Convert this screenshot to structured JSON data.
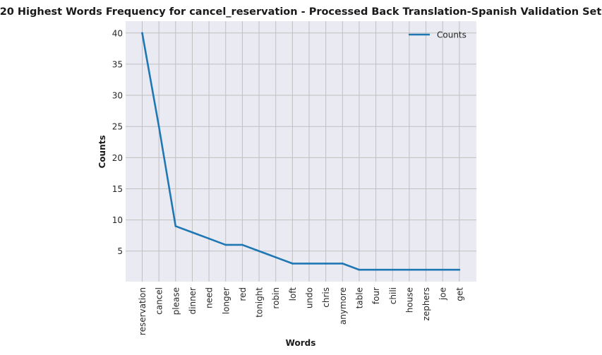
{
  "chart_data": {
    "type": "line",
    "title": "20 Highest Words Frequency for cancel_reservation - Processed Back Translation-Spanish Validation Set",
    "xlabel": "Words",
    "ylabel": "Counts",
    "categories": [
      "reservation",
      "cancel",
      "please",
      "dinner",
      "need",
      "longer",
      "red",
      "tonight",
      "robin",
      "loft",
      "undo",
      "chris",
      "anymore",
      "table",
      "four",
      "chili",
      "house",
      "zephers",
      "joe",
      "get"
    ],
    "series": [
      {
        "name": "Counts",
        "values": [
          40,
          25,
          9,
          8,
          7,
          6,
          6,
          5,
          4,
          3,
          3,
          3,
          3,
          2,
          2,
          2,
          2,
          2,
          2,
          2
        ]
      }
    ],
    "yticks": [
      5,
      10,
      15,
      20,
      25,
      30,
      35,
      40
    ],
    "ylim": [
      0.1,
      41.9
    ],
    "grid": true,
    "legend_position": "top-right",
    "colors": {
      "line": "#1f77b4",
      "background": "#eaeaf2",
      "grid": "#c0c0c0"
    }
  }
}
